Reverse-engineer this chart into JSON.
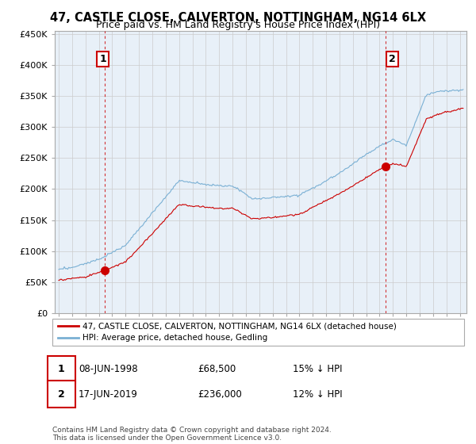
{
  "title": "47, CASTLE CLOSE, CALVERTON, NOTTINGHAM, NG14 6LX",
  "subtitle": "Price paid vs. HM Land Registry's House Price Index (HPI)",
  "ylim": [
    0,
    450000
  ],
  "yticks": [
    0,
    50000,
    100000,
    150000,
    200000,
    250000,
    300000,
    350000,
    400000,
    450000
  ],
  "xlim_start": 1995.0,
  "xlim_end": 2025.5,
  "sale1": {
    "date_num": 1998.44,
    "price": 68500,
    "label": "1"
  },
  "sale2": {
    "date_num": 2019.46,
    "price": 236000,
    "label": "2"
  },
  "legend_line1": "47, CASTLE CLOSE, CALVERTON, NOTTINGHAM, NG14 6LX (detached house)",
  "legend_line2": "HPI: Average price, detached house, Gedling",
  "annotation1_date": "08-JUN-1998",
  "annotation1_price": "£68,500",
  "annotation1_note": "15% ↓ HPI",
  "annotation2_date": "17-JUN-2019",
  "annotation2_price": "£236,000",
  "annotation2_note": "12% ↓ HPI",
  "footer": "Contains HM Land Registry data © Crown copyright and database right 2024.\nThis data is licensed under the Open Government Licence v3.0.",
  "line_color_hpi": "#7ab0d4",
  "line_color_price": "#cc0000",
  "vline_color": "#cc0000",
  "grid_color": "#cccccc",
  "plot_bg_color": "#e8f0f8",
  "bg_color": "#ffffff",
  "title_fontsize": 10.5,
  "subtitle_fontsize": 9,
  "tick_fontsize": 8
}
